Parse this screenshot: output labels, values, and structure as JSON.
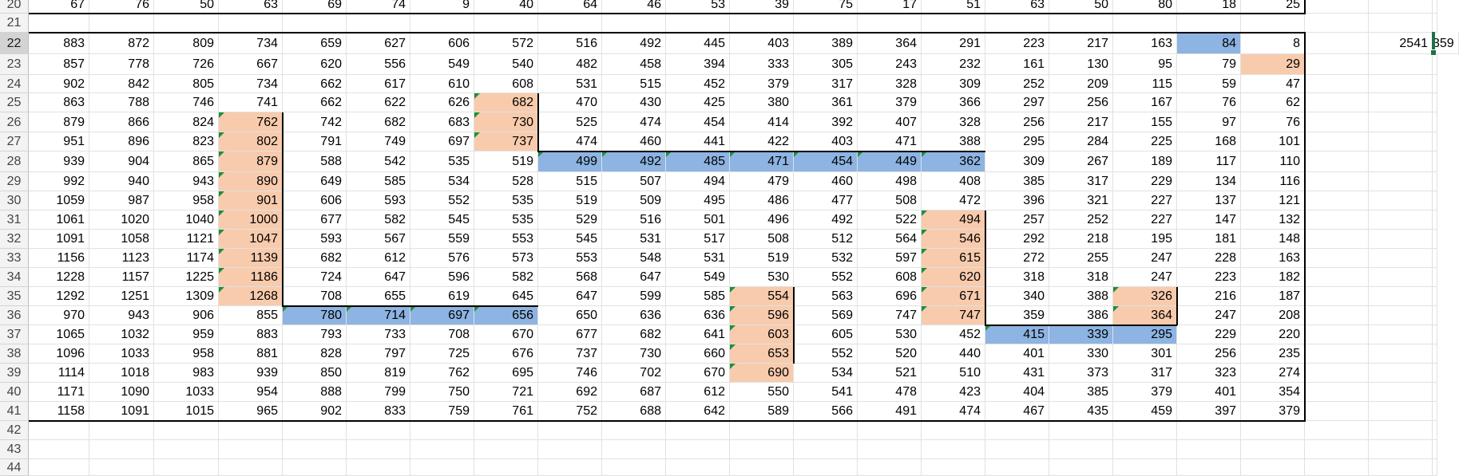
{
  "row_headers": [
    "20",
    "21",
    "22",
    "23",
    "24",
    "25",
    "26",
    "27",
    "28",
    "29",
    "30",
    "31",
    "32",
    "33",
    "34",
    "35",
    "36",
    "37",
    "38",
    "39",
    "40",
    "41",
    "42",
    "43",
    "44"
  ],
  "selected_row": "22",
  "rows": [
    {
      "r": "20",
      "v": [
        "67",
        "76",
        "50",
        "63",
        "69",
        "74",
        "9",
        "40",
        "64",
        "46",
        "53",
        "39",
        "75",
        "17",
        "51",
        "63",
        "50",
        "80",
        "18",
        "25"
      ]
    },
    {
      "r": "21",
      "v": []
    },
    {
      "r": "22",
      "v": [
        "883",
        "872",
        "809",
        "734",
        "659",
        "627",
        "606",
        "572",
        "516",
        "492",
        "445",
        "403",
        "389",
        "364",
        "291",
        "223",
        "217",
        "163",
        "84",
        "8",
        "",
        "2541",
        "359"
      ]
    },
    {
      "r": "23",
      "v": [
        "857",
        "778",
        "726",
        "667",
        "620",
        "556",
        "549",
        "540",
        "482",
        "458",
        "394",
        "333",
        "305",
        "243",
        "232",
        "161",
        "130",
        "95",
        "79",
        "29"
      ]
    },
    {
      "r": "24",
      "v": [
        "902",
        "842",
        "805",
        "734",
        "662",
        "617",
        "610",
        "608",
        "531",
        "515",
        "452",
        "379",
        "317",
        "328",
        "309",
        "252",
        "209",
        "115",
        "59",
        "47"
      ]
    },
    {
      "r": "25",
      "v": [
        "863",
        "788",
        "746",
        "741",
        "662",
        "622",
        "626",
        "682",
        "470",
        "430",
        "425",
        "380",
        "361",
        "379",
        "366",
        "297",
        "256",
        "167",
        "76",
        "62"
      ]
    },
    {
      "r": "26",
      "v": [
        "879",
        "866",
        "824",
        "762",
        "742",
        "682",
        "683",
        "730",
        "525",
        "474",
        "454",
        "414",
        "392",
        "407",
        "328",
        "256",
        "217",
        "155",
        "97",
        "76"
      ]
    },
    {
      "r": "27",
      "v": [
        "951",
        "896",
        "823",
        "802",
        "791",
        "749",
        "697",
        "737",
        "474",
        "460",
        "441",
        "422",
        "403",
        "471",
        "388",
        "295",
        "284",
        "225",
        "168",
        "101"
      ]
    },
    {
      "r": "28",
      "v": [
        "939",
        "904",
        "865",
        "879",
        "588",
        "542",
        "535",
        "519",
        "499",
        "492",
        "485",
        "471",
        "454",
        "449",
        "362",
        "309",
        "267",
        "189",
        "117",
        "110"
      ]
    },
    {
      "r": "29",
      "v": [
        "992",
        "940",
        "943",
        "890",
        "649",
        "585",
        "534",
        "528",
        "515",
        "507",
        "494",
        "479",
        "460",
        "498",
        "408",
        "385",
        "317",
        "229",
        "134",
        "116"
      ]
    },
    {
      "r": "30",
      "v": [
        "1059",
        "987",
        "958",
        "901",
        "606",
        "593",
        "552",
        "535",
        "519",
        "509",
        "495",
        "486",
        "477",
        "508",
        "472",
        "396",
        "321",
        "227",
        "137",
        "121"
      ]
    },
    {
      "r": "31",
      "v": [
        "1061",
        "1020",
        "1040",
        "1000",
        "677",
        "582",
        "545",
        "535",
        "529",
        "516",
        "501",
        "496",
        "492",
        "522",
        "494",
        "257",
        "252",
        "227",
        "147",
        "132"
      ]
    },
    {
      "r": "32",
      "v": [
        "1091",
        "1058",
        "1121",
        "1047",
        "593",
        "567",
        "559",
        "553",
        "545",
        "531",
        "517",
        "508",
        "512",
        "564",
        "546",
        "292",
        "218",
        "195",
        "181",
        "148"
      ]
    },
    {
      "r": "33",
      "v": [
        "1156",
        "1123",
        "1174",
        "1139",
        "682",
        "612",
        "576",
        "573",
        "553",
        "548",
        "531",
        "519",
        "532",
        "597",
        "615",
        "272",
        "255",
        "247",
        "228",
        "163"
      ]
    },
    {
      "r": "34",
      "v": [
        "1228",
        "1157",
        "1225",
        "1186",
        "724",
        "647",
        "596",
        "582",
        "568",
        "647",
        "549",
        "530",
        "552",
        "608",
        "620",
        "318",
        "318",
        "247",
        "223",
        "182"
      ]
    },
    {
      "r": "35",
      "v": [
        "1292",
        "1251",
        "1309",
        "1268",
        "708",
        "655",
        "619",
        "645",
        "647",
        "599",
        "585",
        "554",
        "563",
        "696",
        "671",
        "340",
        "388",
        "326",
        "216",
        "187"
      ]
    },
    {
      "r": "36",
      "v": [
        "970",
        "943",
        "906",
        "855",
        "780",
        "714",
        "697",
        "656",
        "650",
        "636",
        "636",
        "596",
        "569",
        "747",
        "747",
        "359",
        "386",
        "364",
        "247",
        "208"
      ]
    },
    {
      "r": "37",
      "v": [
        "1065",
        "1032",
        "959",
        "883",
        "793",
        "733",
        "708",
        "670",
        "677",
        "682",
        "641",
        "603",
        "605",
        "530",
        "452",
        "415",
        "339",
        "295",
        "229",
        "220"
      ]
    },
    {
      "r": "38",
      "v": [
        "1096",
        "1033",
        "958",
        "881",
        "828",
        "797",
        "725",
        "676",
        "737",
        "730",
        "660",
        "653",
        "552",
        "520",
        "440",
        "401",
        "330",
        "301",
        "256",
        "235"
      ]
    },
    {
      "r": "39",
      "v": [
        "1114",
        "1018",
        "983",
        "939",
        "850",
        "819",
        "762",
        "695",
        "746",
        "702",
        "670",
        "690",
        "534",
        "521",
        "510",
        "431",
        "373",
        "317",
        "323",
        "274"
      ]
    },
    {
      "r": "40",
      "v": [
        "1171",
        "1090",
        "1033",
        "954",
        "888",
        "799",
        "750",
        "721",
        "692",
        "687",
        "612",
        "550",
        "541",
        "478",
        "423",
        "404",
        "385",
        "379",
        "401",
        "354"
      ]
    },
    {
      "r": "41",
      "v": [
        "1158",
        "1091",
        "1015",
        "965",
        "902",
        "833",
        "759",
        "761",
        "752",
        "688",
        "642",
        "589",
        "566",
        "491",
        "474",
        "467",
        "435",
        "459",
        "397",
        "379"
      ]
    },
    {
      "r": "42",
      "v": []
    },
    {
      "r": "43",
      "v": []
    },
    {
      "r": "44",
      "v": []
    }
  ],
  "colors": {
    "highlight_orange": "#f8cbad",
    "highlight_blue": "#8db4e2",
    "active_border": "#1e7145",
    "error_triangle": "#1e8e3e"
  }
}
